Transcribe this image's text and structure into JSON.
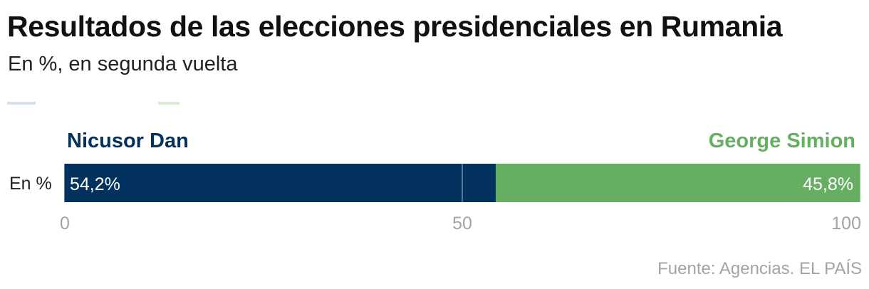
{
  "title": "Resultados de las elecciones presidenciales en Rumania",
  "subtitle": "En %, en segunda vuelta",
  "footer": {
    "source": "Fuente: Agencias",
    "separator": ".",
    "brand": "EL PAÍS"
  },
  "chart_data": {
    "type": "bar",
    "orientation": "horizontal",
    "stacked": true,
    "categories": [
      "En %"
    ],
    "series": [
      {
        "name": "Nicusor Dan",
        "values": [
          54.2
        ],
        "label": "54,2%",
        "color": "#03325f"
      },
      {
        "name": "George Simion",
        "values": [
          45.8
        ],
        "label": "45,8%",
        "color": "#66ae62"
      }
    ],
    "xlim": [
      0,
      100
    ],
    "xticks": [
      0,
      50,
      100
    ],
    "xtick_labels": [
      "0",
      "50",
      "100"
    ],
    "grid": true
  }
}
